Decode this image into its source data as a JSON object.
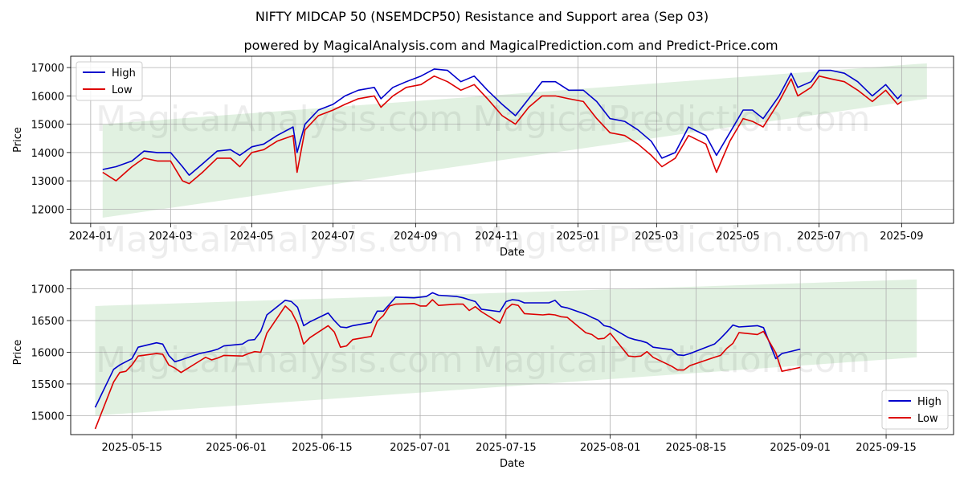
{
  "title": "NIFTY MIDCAP 50 (NSEMDCP50) Resistance and Support area (Sep 03)",
  "subtitle": "powered by MagicalAnalysis.com and MagicalPrediction.com and Predict-Price.com",
  "watermarks": [
    "MagicalAnalysis.com",
    "MagicalPrediction.com"
  ],
  "colors": {
    "high": "#0000cc",
    "low": "#dd0000",
    "band": "#c8e6c8"
  },
  "chart_data": [
    {
      "type": "line",
      "xlabel": "Date",
      "ylabel": "Price",
      "xlim": [
        "2023-12-17",
        "2025-10-10"
      ],
      "ylim": [
        11500,
        17400
      ],
      "x_ticks": [
        "2024-01",
        "2024-03",
        "2024-05",
        "2024-07",
        "2024-09",
        "2024-11",
        "2025-01",
        "2025-03",
        "2025-05",
        "2025-07",
        "2025-09"
      ],
      "y_ticks": [
        12000,
        13000,
        14000,
        15000,
        16000,
        17000
      ],
      "legend": "top-left",
      "grid": true,
      "band": {
        "x": [
          "2024-01-10",
          "2025-09-20"
        ],
        "upper": [
          15000,
          17150
        ],
        "lower": [
          11700,
          15900
        ]
      },
      "x": [
        "2024-01-10",
        "2024-01-20",
        "2024-02-01",
        "2024-02-10",
        "2024-02-20",
        "2024-03-01",
        "2024-03-10",
        "2024-03-15",
        "2024-03-25",
        "2024-04-05",
        "2024-04-15",
        "2024-04-22",
        "2024-05-01",
        "2024-05-10",
        "2024-05-20",
        "2024-06-01",
        "2024-06-04",
        "2024-06-10",
        "2024-06-20",
        "2024-07-01",
        "2024-07-10",
        "2024-07-20",
        "2024-08-01",
        "2024-08-06",
        "2024-08-15",
        "2024-08-25",
        "2024-09-05",
        "2024-09-15",
        "2024-09-25",
        "2024-10-05",
        "2024-10-15",
        "2024-10-25",
        "2024-11-05",
        "2024-11-15",
        "2024-11-25",
        "2024-12-05",
        "2024-12-15",
        "2024-12-25",
        "2025-01-05",
        "2025-01-15",
        "2025-01-25",
        "2025-02-05",
        "2025-02-15",
        "2025-02-25",
        "2025-03-05",
        "2025-03-15",
        "2025-03-25",
        "2025-04-07",
        "2025-04-15",
        "2025-04-25",
        "2025-05-05",
        "2025-05-12",
        "2025-05-20",
        "2025-06-01",
        "2025-06-10",
        "2025-06-15",
        "2025-06-25",
        "2025-07-01",
        "2025-07-10",
        "2025-07-20",
        "2025-07-30",
        "2025-08-10",
        "2025-08-20",
        "2025-08-29",
        "2025-09-01"
      ],
      "series": [
        {
          "name": "High",
          "values": [
            13400,
            13500,
            13700,
            14050,
            14000,
            14000,
            13500,
            13200,
            13600,
            14050,
            14100,
            13900,
            14200,
            14300,
            14600,
            14900,
            14000,
            15000,
            15500,
            15700,
            16000,
            16200,
            16300,
            15900,
            16300,
            16500,
            16700,
            16950,
            16900,
            16500,
            16700,
            16200,
            15700,
            15300,
            15900,
            16500,
            16500,
            16200,
            16200,
            15800,
            15200,
            15100,
            14800,
            14400,
            13800,
            14000,
            14900,
            14600,
            13900,
            14700,
            15500,
            15500,
            15200,
            16000,
            16800,
            16300,
            16500,
            16900,
            16900,
            16800,
            16500,
            16000,
            16400,
            15900,
            16050
          ]
        },
        {
          "name": "Low",
          "values": [
            13300,
            13000,
            13500,
            13800,
            13700,
            13700,
            13000,
            12900,
            13300,
            13800,
            13800,
            13500,
            14000,
            14100,
            14400,
            14600,
            13300,
            14800,
            15300,
            15500,
            15700,
            15900,
            16000,
            15600,
            16000,
            16300,
            16400,
            16700,
            16500,
            16200,
            16400,
            15900,
            15300,
            15000,
            15600,
            16000,
            16000,
            15900,
            15800,
            15200,
            14700,
            14600,
            14300,
            13900,
            13500,
            13800,
            14600,
            14300,
            13300,
            14400,
            15200,
            15100,
            14900,
            15800,
            16600,
            16000,
            16300,
            16700,
            16600,
            16500,
            16200,
            15800,
            16200,
            15700,
            15800
          ]
        }
      ]
    },
    {
      "type": "line",
      "xlabel": "Date",
      "ylabel": "Price",
      "xlim": [
        "2025-05-05",
        "2025-09-26"
      ],
      "ylim": [
        14700,
        17300
      ],
      "x_ticks": [
        "2025-05-15",
        "2025-06-01",
        "2025-06-15",
        "2025-07-01",
        "2025-07-15",
        "2025-08-01",
        "2025-08-15",
        "2025-09-01",
        "2025-09-15"
      ],
      "y_ticks": [
        15000,
        15500,
        16000,
        16500,
        17000
      ],
      "legend": "bottom-right",
      "grid": true,
      "band": {
        "x": [
          "2025-05-09",
          "2025-09-20"
        ],
        "upper": [
          16730,
          17150
        ],
        "lower": [
          15000,
          15920
        ]
      },
      "x": [
        "2025-05-09",
        "2025-05-12",
        "2025-05-13",
        "2025-05-14",
        "2025-05-15",
        "2025-05-16",
        "2025-05-19",
        "2025-05-20",
        "2025-05-21",
        "2025-05-22",
        "2025-05-23",
        "2025-05-26",
        "2025-05-27",
        "2025-05-28",
        "2025-05-29",
        "2025-05-30",
        "2025-06-02",
        "2025-06-03",
        "2025-06-04",
        "2025-06-05",
        "2025-06-06",
        "2025-06-09",
        "2025-06-10",
        "2025-06-11",
        "2025-06-12",
        "2025-06-13",
        "2025-06-16",
        "2025-06-17",
        "2025-06-18",
        "2025-06-19",
        "2025-06-20",
        "2025-06-23",
        "2025-06-24",
        "2025-06-25",
        "2025-06-26",
        "2025-06-27",
        "2025-06-30",
        "2025-07-01",
        "2025-07-02",
        "2025-07-03",
        "2025-07-04",
        "2025-07-07",
        "2025-07-08",
        "2025-07-09",
        "2025-07-10",
        "2025-07-11",
        "2025-07-14",
        "2025-07-15",
        "2025-07-16",
        "2025-07-17",
        "2025-07-18",
        "2025-07-21",
        "2025-07-22",
        "2025-07-23",
        "2025-07-24",
        "2025-07-25",
        "2025-07-28",
        "2025-07-29",
        "2025-07-30",
        "2025-07-31",
        "2025-08-01",
        "2025-08-04",
        "2025-08-05",
        "2025-08-06",
        "2025-08-07",
        "2025-08-08",
        "2025-08-11",
        "2025-08-12",
        "2025-08-13",
        "2025-08-14",
        "2025-08-18",
        "2025-08-19",
        "2025-08-20",
        "2025-08-21",
        "2025-08-22",
        "2025-08-25",
        "2025-08-26",
        "2025-08-28",
        "2025-08-29",
        "2025-09-01"
      ],
      "series": [
        {
          "name": "High",
          "values": [
            15130,
            15730,
            15800,
            15850,
            15900,
            16080,
            16150,
            16130,
            15950,
            15850,
            15880,
            15980,
            16000,
            16020,
            16050,
            16100,
            16130,
            16190,
            16200,
            16330,
            16590,
            16820,
            16800,
            16710,
            16420,
            16480,
            16620,
            16500,
            16400,
            16390,
            16420,
            16470,
            16650,
            16650,
            16760,
            16870,
            16860,
            16870,
            16880,
            16940,
            16900,
            16880,
            16860,
            16830,
            16800,
            16680,
            16640,
            16800,
            16830,
            16820,
            16780,
            16780,
            16780,
            16820,
            16720,
            16700,
            16600,
            16550,
            16510,
            16420,
            16400,
            16230,
            16200,
            16180,
            16150,
            16080,
            16040,
            15960,
            15950,
            15980,
            16130,
            16220,
            16320,
            16430,
            16400,
            16420,
            16390,
            15900,
            15980,
            16050
          ]
        },
        {
          "name": "Low",
          "values": [
            14790,
            15530,
            15680,
            15700,
            15800,
            15940,
            15980,
            15970,
            15800,
            15750,
            15680,
            15860,
            15920,
            15880,
            15910,
            15950,
            15940,
            15980,
            16010,
            16000,
            16300,
            16730,
            16640,
            16450,
            16130,
            16230,
            16420,
            16320,
            16080,
            16100,
            16200,
            16250,
            16490,
            16580,
            16730,
            16760,
            16770,
            16730,
            16730,
            16830,
            16740,
            16760,
            16760,
            16660,
            16720,
            16640,
            16460,
            16680,
            16760,
            16740,
            16610,
            16590,
            16600,
            16590,
            16560,
            16550,
            16310,
            16280,
            16210,
            16220,
            16300,
            15940,
            15930,
            15940,
            16010,
            15920,
            15780,
            15720,
            15720,
            15790,
            15920,
            15950,
            16060,
            16140,
            16310,
            16280,
            16330,
            15990,
            15700,
            15760
          ]
        }
      ]
    }
  ]
}
